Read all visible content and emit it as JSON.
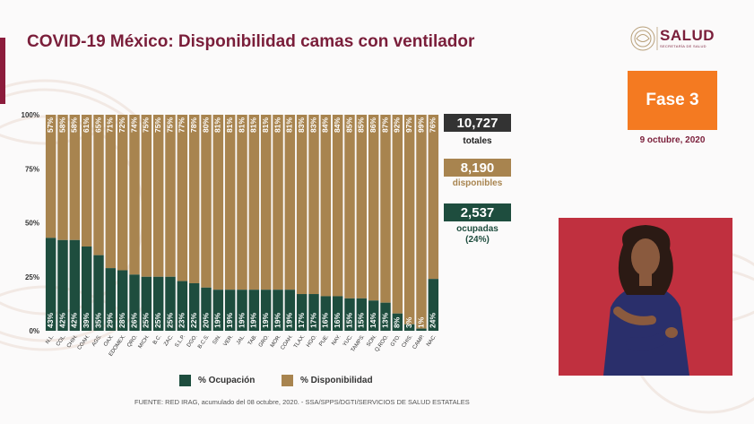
{
  "title": "COVID-19 México: Disponibilidad camas con ventilador",
  "logo": {
    "name": "SALUD",
    "subtitle": "SECRETARÍA DE SALUD"
  },
  "phase": "Fase 3",
  "date": "9 octubre, 2020",
  "stats": {
    "total_value": "10,727",
    "total_label": "totales",
    "available_value": "8,190",
    "available_label": "disponibles",
    "occupied_value": "2,537",
    "occupied_label": "ocupadas",
    "occupied_pct": "(24%)"
  },
  "legend": {
    "occupied": "% Ocupación",
    "available": "% Disponibilidad"
  },
  "source": "FUENTE: RED IRAG, acumulado del 08 octubre, 2020. - SSA/SPPS/DGTI/SERVICIOS DE SALUD ESTATALES",
  "colors": {
    "occupied": "#1e4d3e",
    "available": "#a8844f",
    "accent": "#7a1e3a",
    "phase": "#f47a21"
  },
  "chart_data": {
    "type": "bar",
    "stacked": true,
    "categories": [
      "N.L.",
      "COL.",
      "CHIH.",
      "COAH.",
      "AGS.",
      "OAX.",
      "EDOMEX.",
      "QRO.",
      "MICH.",
      "B.C.",
      "ZAC.",
      "S.L.P.",
      "DGO.",
      "B.C.S.",
      "SIN.",
      "VER.",
      "JAL.",
      "TAB.",
      "GRO.",
      "MOR.",
      "COAH.",
      "TLAX.",
      "HGO.",
      "PUE.",
      "NAY.",
      "YUC.",
      "TAMPS.",
      "SON.",
      "Q.ROO.",
      "GTO.",
      "CHIS.",
      "CAMP.",
      "NAC."
    ],
    "y_ticks": [
      "0%",
      "25%",
      "50%",
      "75%",
      "100%"
    ],
    "ylim": [
      0,
      100
    ],
    "series": [
      {
        "name": "% Ocupación",
        "values": [
          43,
          42,
          42,
          39,
          35,
          29,
          28,
          26,
          25,
          25,
          25,
          23,
          22,
          20,
          19,
          19,
          19,
          19,
          19,
          19,
          19,
          17,
          17,
          16,
          16,
          15,
          15,
          14,
          13,
          8,
          3,
          1,
          24
        ],
        "labels": [
          "43%",
          "42%",
          "42%",
          "39%",
          "35%",
          "29%",
          "28%",
          "26%",
          "25%",
          "25%",
          "25%",
          "23%",
          "22%",
          "20%",
          "19%",
          "19%",
          "19%",
          "19%",
          "19%",
          "19%",
          "19%",
          "17%",
          "17%",
          "16%",
          "16%",
          "15%",
          "15%",
          "14%",
          "13%",
          "8%",
          "3%",
          "1%",
          "24%"
        ]
      },
      {
        "name": "% Disponibilidad",
        "values": [
          57,
          58,
          58,
          61,
          65,
          71,
          72,
          74,
          75,
          75,
          75,
          77,
          78,
          80,
          81,
          81,
          81,
          81,
          81,
          81,
          81,
          83,
          83,
          84,
          84,
          85,
          85,
          86,
          87,
          92,
          97,
          99,
          76
        ],
        "labels": [
          "57%",
          "58%",
          "58%",
          "61%",
          "65%",
          "71%",
          "72%",
          "74%",
          "75%",
          "75%",
          "75%",
          "77%",
          "78%",
          "80%",
          "81%",
          "81%",
          "81%",
          "81%",
          "81%",
          "81%",
          "81%",
          "83%",
          "83%",
          "84%",
          "84%",
          "85%",
          "85%",
          "86%",
          "87%",
          "92%",
          "97%",
          "99%",
          "76%"
        ]
      }
    ]
  }
}
